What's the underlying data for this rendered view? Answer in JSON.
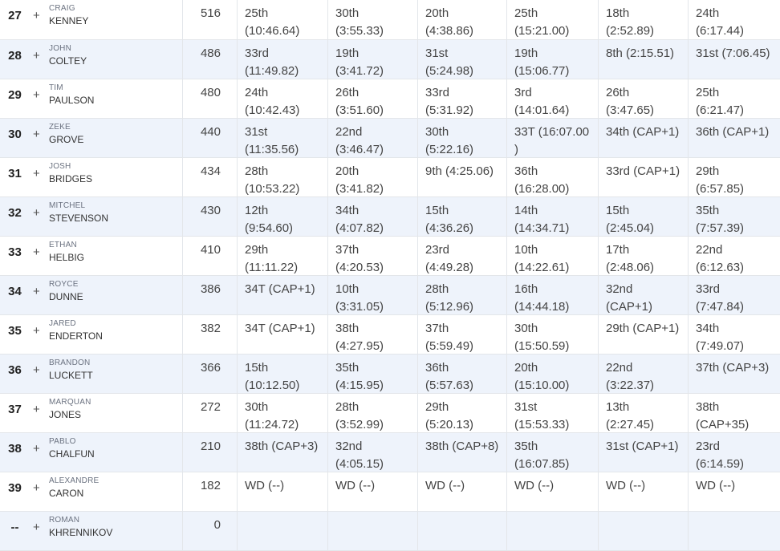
{
  "leaderboard": {
    "expand_symbol": "+",
    "rows": [
      {
        "rank": "27",
        "first": "CRAIG",
        "last": "KENNEY",
        "points": "516",
        "events": [
          [
            "25th",
            "(10:46.64)"
          ],
          [
            "30th",
            "(3:55.33)"
          ],
          [
            "20th",
            "(4:38.86)"
          ],
          [
            "25th",
            "(15:21.00)"
          ],
          [
            "18th",
            "(2:52.89)"
          ],
          [
            "24th",
            "(6:17.44)"
          ]
        ]
      },
      {
        "rank": "28",
        "first": "JOHN",
        "last": "COLTEY",
        "points": "486",
        "events": [
          [
            "33rd",
            "(11:49.82)"
          ],
          [
            "19th",
            "(3:41.72)"
          ],
          [
            "31st",
            "(5:24.98)"
          ],
          [
            "19th",
            "(15:06.77)"
          ],
          [
            "8th (2:15.51)",
            ""
          ],
          [
            "31st (7:06.45)",
            ""
          ]
        ]
      },
      {
        "rank": "29",
        "first": "TIM",
        "last": "PAULSON",
        "points": "480",
        "events": [
          [
            "24th",
            "(10:42.43)"
          ],
          [
            "26th",
            "(3:51.60)"
          ],
          [
            "33rd",
            "(5:31.92)"
          ],
          [
            "3rd",
            "(14:01.64)"
          ],
          [
            "26th",
            "(3:47.65)"
          ],
          [
            "25th",
            "(6:21.47)"
          ]
        ]
      },
      {
        "rank": "30",
        "first": "ZEKE",
        "last": "GROVE",
        "points": "440",
        "events": [
          [
            "31st",
            "(11:35.56)"
          ],
          [
            "22nd",
            "(3:46.47)"
          ],
          [
            "30th",
            "(5:22.16)"
          ],
          [
            "33T (16:07.00",
            ")"
          ],
          [
            "34th (CAP+1)",
            ""
          ],
          [
            "36th (CAP+1)",
            ""
          ]
        ]
      },
      {
        "rank": "31",
        "first": "JOSH",
        "last": "BRIDGES",
        "points": "434",
        "events": [
          [
            "28th",
            "(10:53.22)"
          ],
          [
            "20th",
            "(3:41.82)"
          ],
          [
            "9th (4:25.06)",
            ""
          ],
          [
            "36th",
            "(16:28.00)"
          ],
          [
            "33rd (CAP+1)",
            ""
          ],
          [
            "29th",
            "(6:57.85)"
          ]
        ]
      },
      {
        "rank": "32",
        "first": "MITCHEL",
        "last": "STEVENSON",
        "points": "430",
        "events": [
          [
            "12th",
            "(9:54.60)"
          ],
          [
            "34th",
            "(4:07.82)"
          ],
          [
            "15th",
            "(4:36.26)"
          ],
          [
            "14th",
            "(14:34.71)"
          ],
          [
            "15th",
            "(2:45.04)"
          ],
          [
            "35th",
            "(7:57.39)"
          ]
        ]
      },
      {
        "rank": "33",
        "first": "ETHAN",
        "last": "HELBIG",
        "points": "410",
        "events": [
          [
            "29th",
            "(11:11.22)"
          ],
          [
            "37th",
            "(4:20.53)"
          ],
          [
            "23rd",
            "(4:49.28)"
          ],
          [
            "10th",
            "(14:22.61)"
          ],
          [
            "17th",
            "(2:48.06)"
          ],
          [
            "22nd",
            "(6:12.63)"
          ]
        ]
      },
      {
        "rank": "34",
        "first": "ROYCE",
        "last": "DUNNE",
        "points": "386",
        "events": [
          [
            "34T (CAP+1)",
            ""
          ],
          [
            "10th",
            "(3:31.05)"
          ],
          [
            "28th",
            "(5:12.96)"
          ],
          [
            "16th",
            "(14:44.18)"
          ],
          [
            "32nd",
            "(CAP+1)"
          ],
          [
            "33rd",
            "(7:47.84)"
          ]
        ]
      },
      {
        "rank": "35",
        "first": "JARED",
        "last": "ENDERTON",
        "points": "382",
        "events": [
          [
            "34T (CAP+1)",
            ""
          ],
          [
            "38th",
            "(4:27.95)"
          ],
          [
            "37th",
            "(5:59.49)"
          ],
          [
            "30th",
            "(15:50.59)"
          ],
          [
            "29th (CAP+1)",
            ""
          ],
          [
            "34th",
            "(7:49.07)"
          ]
        ]
      },
      {
        "rank": "36",
        "first": "BRANDON",
        "last": "LUCKETT",
        "points": "366",
        "events": [
          [
            "15th",
            "(10:12.50)"
          ],
          [
            "35th",
            "(4:15.95)"
          ],
          [
            "36th",
            "(5:57.63)"
          ],
          [
            "20th",
            "(15:10.00)"
          ],
          [
            "22nd",
            "(3:22.37)"
          ],
          [
            "37th (CAP+3)",
            ""
          ]
        ]
      },
      {
        "rank": "37",
        "first": "MARQUAN",
        "last": "JONES",
        "points": "272",
        "events": [
          [
            "30th",
            "(11:24.72)"
          ],
          [
            "28th",
            "(3:52.99)"
          ],
          [
            "29th",
            "(5:20.13)"
          ],
          [
            "31st",
            "(15:53.33)"
          ],
          [
            "13th",
            "(2:27.45)"
          ],
          [
            "38th",
            "(CAP+35)"
          ]
        ]
      },
      {
        "rank": "38",
        "first": "PABLO",
        "last": "CHALFUN",
        "points": "210",
        "events": [
          [
            "38th (CAP+3)",
            ""
          ],
          [
            "32nd",
            "(4:05.15)"
          ],
          [
            "38th (CAP+8)",
            ""
          ],
          [
            "35th",
            "(16:07.85)"
          ],
          [
            "31st (CAP+1)",
            ""
          ],
          [
            "23rd",
            "(6:14.59)"
          ]
        ]
      },
      {
        "rank": "39",
        "first": "ALEXANDRE",
        "last": "CARON",
        "points": "182",
        "events": [
          [
            "WD (--)",
            ""
          ],
          [
            "WD (--)",
            ""
          ],
          [
            "WD (--)",
            ""
          ],
          [
            "WD (--)",
            ""
          ],
          [
            "WD (--)",
            ""
          ],
          [
            "WD (--)",
            ""
          ]
        ]
      },
      {
        "rank": "--",
        "first": "ROMAN",
        "last": "KHRENNIKOV",
        "points": "0",
        "events": [
          [
            "",
            ""
          ],
          [
            "",
            ""
          ],
          [
            "",
            ""
          ],
          [
            "",
            ""
          ],
          [
            "",
            ""
          ],
          [
            "",
            ""
          ]
        ]
      }
    ]
  }
}
